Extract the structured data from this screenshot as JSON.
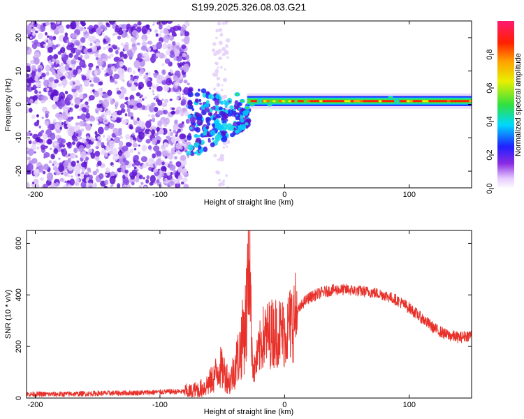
{
  "title": "S199.2025.326.08.03.G21",
  "colorbar": {
    "label": "Normalized spectral amplitude",
    "ticks": [
      "0.0",
      "0.2",
      "0.4",
      "0.6",
      "0.8"
    ],
    "tick_values": [
      0.0,
      0.2,
      0.4,
      0.6,
      0.8
    ]
  },
  "chart_data": [
    {
      "type": "heatmap",
      "xlabel": "Height of straight line (km)",
      "ylabel": "Frequency (Hz)",
      "xlim": [
        -207,
        150
      ],
      "ylim": [
        -25,
        25
      ],
      "xticks": [
        -200,
        -100,
        0,
        100
      ],
      "xtick_labels": [
        "-200",
        "-100",
        "0",
        "100"
      ],
      "yticks": [
        -20,
        -10,
        0,
        10,
        20
      ],
      "ytick_labels": [
        "-20",
        "-10",
        "0",
        "10",
        "20"
      ],
      "regions": [
        {
          "x_range": [
            -207,
            -77
          ],
          "description": "scattered low-amplitude noise across all frequencies"
        },
        {
          "x_range": [
            -77,
            -30
          ],
          "description": "transition, energy concentrated near 0 Hz with blobs down to -13 Hz"
        },
        {
          "x_range": [
            -30,
            150
          ],
          "description": "narrow strong band near 1 Hz"
        }
      ],
      "band_center_hz": 1,
      "band_halfwidth_hz": 1.5
    },
    {
      "type": "line",
      "xlabel": "Height of straight line (km)",
      "ylabel": "SNR (10 * v/v)",
      "xlim": [
        -207,
        150
      ],
      "ylim": [
        0,
        650
      ],
      "xticks": [
        -200,
        -100,
        0,
        100
      ],
      "xtick_labels": [
        "-200",
        "-100",
        "0",
        "100"
      ],
      "yticks": [
        0,
        200,
        400,
        600
      ],
      "ytick_labels": [
        "0",
        "200",
        "400",
        "600"
      ],
      "color": "#e8312a",
      "series": [
        {
          "x": [
            -207,
            -180,
            -150,
            -120,
            -90,
            -75,
            -65,
            -58,
            -52,
            -47,
            -44,
            -40,
            -36,
            -33,
            -31,
            -29,
            -28,
            -27,
            -25,
            -22,
            -18,
            -12,
            -5,
            0,
            5,
            10,
            15,
            20,
            30,
            40,
            50,
            60,
            70,
            80,
            90,
            100,
            110,
            120,
            130,
            140,
            150
          ],
          "y": [
            15,
            15,
            18,
            20,
            25,
            25,
            40,
            70,
            120,
            90,
            60,
            120,
            180,
            250,
            300,
            500,
            650,
            300,
            100,
            150,
            230,
            250,
            260,
            250,
            290,
            330,
            370,
            390,
            410,
            420,
            420,
            415,
            410,
            400,
            380,
            350,
            310,
            270,
            245,
            235,
            245
          ]
        }
      ]
    }
  ]
}
